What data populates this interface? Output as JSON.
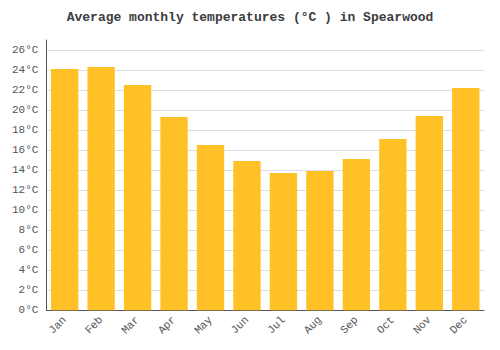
{
  "chart_data": {
    "type": "bar",
    "title": "Average monthly temperatures (°C ) in Spearwood",
    "categories": [
      "Jan",
      "Feb",
      "Mar",
      "Apr",
      "May",
      "Jun",
      "Jul",
      "Aug",
      "Sep",
      "Oct",
      "Nov",
      "Dec"
    ],
    "values": [
      24.1,
      24.3,
      22.5,
      19.3,
      16.5,
      14.9,
      13.7,
      13.9,
      15.1,
      17.1,
      19.4,
      22.2
    ],
    "color": "#FFC125",
    "ylim": [
      0,
      27
    ],
    "yticks": [
      {
        "value": 0,
        "label": "0°C"
      },
      {
        "value": 2,
        "label": "2°C"
      },
      {
        "value": 4,
        "label": "4°C"
      },
      {
        "value": 6,
        "label": "6°C"
      },
      {
        "value": 8,
        "label": "8°C"
      },
      {
        "value": 10,
        "label": "10°C"
      },
      {
        "value": 12,
        "label": "12°C"
      },
      {
        "value": 14,
        "label": "14°C"
      },
      {
        "value": 16,
        "label": "16°C"
      },
      {
        "value": 18,
        "label": "18°C"
      },
      {
        "value": 20,
        "label": "20°C"
      },
      {
        "value": 22,
        "label": "22°C"
      },
      {
        "value": 24,
        "label": "24°C"
      },
      {
        "value": 26,
        "label": "26°C"
      }
    ],
    "grid": true
  }
}
